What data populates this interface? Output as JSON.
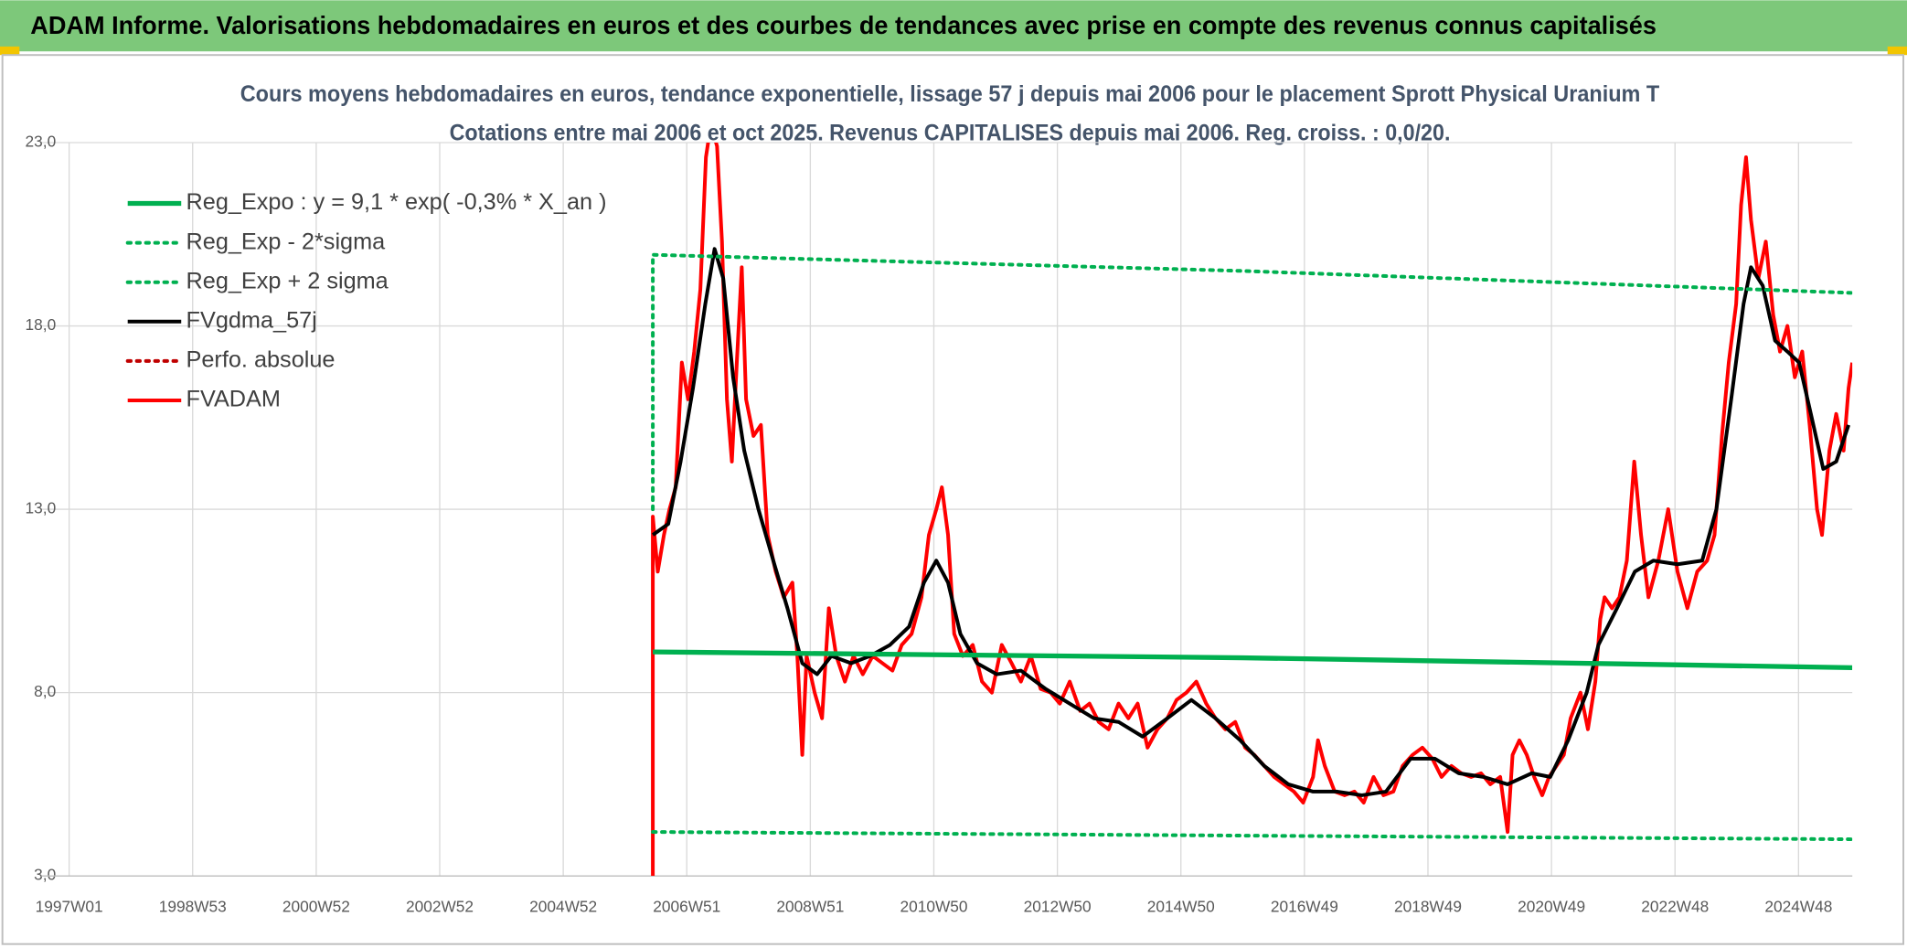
{
  "header": {
    "title": "ADAM Informe. Valorisations hebdomadaires en euros et des courbes de tendances avec prise en compte des revenus connus capitalisés"
  },
  "chart_data": {
    "type": "line",
    "title": "Cours moyens hebdomadaires en euros, tendance exponentielle, lissage 57 j depuis mai 2006 pour le placement Sprott Physical Uranium T",
    "subtitle": "Cotations entre mai 2006 et oct 2025. Revenus CAPITALISES depuis mai 2006. Reg. croiss. : 0,0/20.",
    "xlim": [
      1996.55,
      2025.87
    ],
    "xticks": [
      {
        "value": 1997,
        "label": "1997W01"
      },
      {
        "value": 1999,
        "label": "1998W53"
      },
      {
        "value": 2001,
        "label": "2000W52"
      },
      {
        "value": 2003,
        "label": "2002W52"
      },
      {
        "value": 2005,
        "label": "2004W52"
      },
      {
        "value": 2007,
        "label": "2006W51"
      },
      {
        "value": 2009,
        "label": "2008W51"
      },
      {
        "value": 2011,
        "label": "2010W50"
      },
      {
        "value": 2013,
        "label": "2012W50"
      },
      {
        "value": 2015,
        "label": "2014W50"
      },
      {
        "value": 2017,
        "label": "2016W49"
      },
      {
        "value": 2019,
        "label": "2018W49"
      },
      {
        "value": 2021,
        "label": "2020W49"
      },
      {
        "value": 2023,
        "label": "2022W48"
      },
      {
        "value": 2025,
        "label": "2024W48"
      }
    ],
    "ylim": [
      3,
      23
    ],
    "yticks": [
      {
        "value": 3,
        "label": "3,0"
      },
      {
        "value": 8,
        "label": "8,0"
      },
      {
        "value": 13,
        "label": "13,0"
      },
      {
        "value": 18,
        "label": "18,0"
      },
      {
        "value": 23,
        "label": "23,0"
      }
    ],
    "grid": true,
    "legend": "upper-left",
    "series": [
      {
        "name": "Reg_Expo : y = 9,1 * exp( -0,3% *  X_an )",
        "color": "#00b050",
        "dash": "solid",
        "width": 4,
        "x": [
          2006.45,
          2016.0,
          2025.87
        ],
        "values": [
          9.11,
          8.95,
          8.68
        ]
      },
      {
        "name": "Reg_Exp - 2*sigma",
        "color": "#00b050",
        "dash": "dotted",
        "width": 3,
        "x": [
          2006.45,
          2016.0,
          2025.87
        ],
        "values": [
          4.2,
          4.1,
          4.0
        ]
      },
      {
        "name": "Reg_Exp + 2 sigma",
        "color": "#00b050",
        "dash": "dotted",
        "width": 3,
        "x": [
          2006.45,
          2006.45,
          2016.0,
          2025.87
        ],
        "values": [
          13.0,
          19.94,
          19.5,
          18.9
        ]
      },
      {
        "name": "FVgdma_57j",
        "color": "#000000",
        "dash": "solid",
        "width": 3,
        "x": [
          2006.45,
          2006.7,
          2006.9,
          2007.1,
          2007.3,
          2007.45,
          2007.59,
          2007.75,
          2007.93,
          2008.16,
          2008.4,
          2008.63,
          2008.87,
          2009.11,
          2009.34,
          2009.66,
          2009.97,
          2010.29,
          2010.6,
          2010.84,
          2011.04,
          2011.23,
          2011.43,
          2011.7,
          2012.02,
          2012.41,
          2012.81,
          2013.2,
          2013.59,
          2013.99,
          2014.38,
          2014.78,
          2015.17,
          2015.56,
          2015.96,
          2016.35,
          2016.74,
          2017.14,
          2017.53,
          2017.93,
          2018.32,
          2018.72,
          2019.11,
          2019.5,
          2019.9,
          2020.29,
          2020.68,
          2020.98,
          2021.27,
          2021.57,
          2021.76,
          2022.06,
          2022.35,
          2022.65,
          2023.04,
          2023.44,
          2023.67,
          2023.91,
          2024.11,
          2024.23,
          2024.42,
          2024.62,
          2024.82,
          2025.01,
          2025.2,
          2025.4,
          2025.61,
          2025.81
        ],
        "values": [
          12.3,
          12.6,
          14.3,
          16.3,
          18.6,
          20.1,
          19.3,
          16.6,
          14.6,
          13.0,
          11.6,
          10.3,
          8.8,
          8.5,
          9.0,
          8.8,
          9.0,
          9.3,
          9.8,
          11.0,
          11.6,
          11.0,
          9.6,
          8.8,
          8.5,
          8.6,
          8.1,
          7.7,
          7.3,
          7.2,
          6.8,
          7.3,
          7.8,
          7.3,
          6.7,
          6.0,
          5.5,
          5.3,
          5.3,
          5.2,
          5.3,
          6.2,
          6.2,
          5.8,
          5.7,
          5.5,
          5.8,
          5.7,
          6.7,
          8.0,
          9.3,
          10.3,
          11.3,
          11.6,
          11.5,
          11.6,
          13.0,
          16.0,
          18.6,
          19.6,
          19.1,
          17.6,
          17.3,
          17.0,
          15.6,
          14.1,
          14.3,
          15.3
        ]
      },
      {
        "name": "Perfo. absolue",
        "color": "#c00000",
        "dash": "dotted",
        "width": 3,
        "x": [],
        "values": []
      },
      {
        "name": "FVADAM",
        "color": "#ff0000",
        "dash": "solid",
        "width": 3,
        "x": [
          2006.45,
          2006.45,
          2006.53,
          2006.63,
          2006.72,
          2006.82,
          2006.92,
          2007.02,
          2007.12,
          2007.22,
          2007.31,
          2007.39,
          2007.49,
          2007.57,
          2007.65,
          2007.73,
          2007.81,
          2007.89,
          2007.96,
          2008.08,
          2008.2,
          2008.31,
          2008.44,
          2008.57,
          2008.71,
          2008.79,
          2008.87,
          2008.94,
          2009.07,
          2009.19,
          2009.3,
          2009.42,
          2009.56,
          2009.7,
          2009.85,
          2010.01,
          2010.17,
          2010.33,
          2010.48,
          2010.64,
          2010.8,
          2010.92,
          2011.04,
          2011.13,
          2011.23,
          2011.33,
          2011.47,
          2011.63,
          2011.78,
          2011.94,
          2012.1,
          2012.26,
          2012.41,
          2012.57,
          2012.73,
          2012.89,
          2013.04,
          2013.2,
          2013.37,
          2013.52,
          2013.67,
          2013.83,
          2013.99,
          2014.15,
          2014.3,
          2014.46,
          2014.62,
          2014.78,
          2014.93,
          2015.09,
          2015.25,
          2015.41,
          2015.56,
          2015.72,
          2015.88,
          2016.04,
          2016.19,
          2016.35,
          2016.51,
          2016.67,
          2016.83,
          2016.98,
          2017.14,
          2017.22,
          2017.33,
          2017.49,
          2017.65,
          2017.81,
          2017.96,
          2018.12,
          2018.28,
          2018.44,
          2018.59,
          2018.75,
          2018.91,
          2019.07,
          2019.22,
          2019.38,
          2019.54,
          2019.7,
          2019.86,
          2020.01,
          2020.17,
          2020.29,
          2020.37,
          2020.48,
          2020.6,
          2020.72,
          2020.85,
          2020.96,
          2021.08,
          2021.2,
          2021.31,
          2021.47,
          2021.59,
          2021.71,
          2021.79,
          2021.86,
          2021.98,
          2022.1,
          2022.22,
          2022.34,
          2022.45,
          2022.57,
          2022.73,
          2022.89,
          2023.04,
          2023.2,
          2023.36,
          2023.52,
          2023.64,
          2023.76,
          2023.87,
          2023.99,
          2024.07,
          2024.15,
          2024.23,
          2024.35,
          2024.47,
          2024.59,
          2024.7,
          2024.82,
          2024.94,
          2025.06,
          2025.18,
          2025.3,
          2025.38,
          2025.5,
          2025.61,
          2025.73,
          2025.81,
          2025.87
        ],
        "values": [
          3.0,
          12.8,
          11.3,
          12.3,
          13.0,
          13.6,
          17.0,
          16.0,
          17.3,
          19.0,
          22.6,
          23.5,
          22.9,
          20.3,
          16.0,
          14.3,
          17.0,
          19.6,
          16.0,
          15.0,
          15.3,
          12.3,
          11.3,
          10.6,
          11.0,
          9.0,
          6.3,
          9.0,
          8.0,
          7.3,
          10.3,
          9.0,
          8.3,
          9.0,
          8.5,
          9.0,
          8.8,
          8.6,
          9.3,
          9.6,
          10.6,
          12.3,
          13.0,
          13.6,
          12.3,
          9.6,
          9.0,
          9.3,
          8.3,
          8.0,
          9.3,
          8.8,
          8.3,
          9.0,
          8.1,
          8.0,
          7.7,
          8.3,
          7.5,
          7.7,
          7.2,
          7.0,
          7.7,
          7.3,
          7.7,
          6.5,
          7.0,
          7.3,
          7.8,
          8.0,
          8.3,
          7.7,
          7.3,
          7.0,
          7.2,
          6.5,
          6.3,
          6.0,
          5.7,
          5.5,
          5.3,
          5.0,
          5.7,
          6.7,
          6.0,
          5.3,
          5.2,
          5.3,
          5.0,
          5.7,
          5.2,
          5.3,
          6.0,
          6.3,
          6.5,
          6.2,
          5.7,
          6.0,
          5.8,
          5.7,
          5.8,
          5.5,
          5.7,
          4.2,
          6.3,
          6.7,
          6.3,
          5.7,
          5.2,
          5.7,
          6.0,
          6.3,
          7.3,
          8.0,
          7.0,
          8.3,
          10.0,
          10.6,
          10.3,
          10.6,
          11.6,
          14.3,
          12.3,
          10.6,
          11.6,
          13.0,
          11.3,
          10.3,
          11.3,
          11.6,
          12.3,
          15.0,
          17.0,
          18.6,
          21.3,
          22.6,
          20.9,
          19.3,
          20.3,
          18.3,
          17.3,
          18.0,
          16.6,
          17.3,
          15.3,
          13.0,
          12.3,
          14.6,
          15.6,
          14.6,
          16.3,
          17.0
        ]
      }
    ]
  }
}
